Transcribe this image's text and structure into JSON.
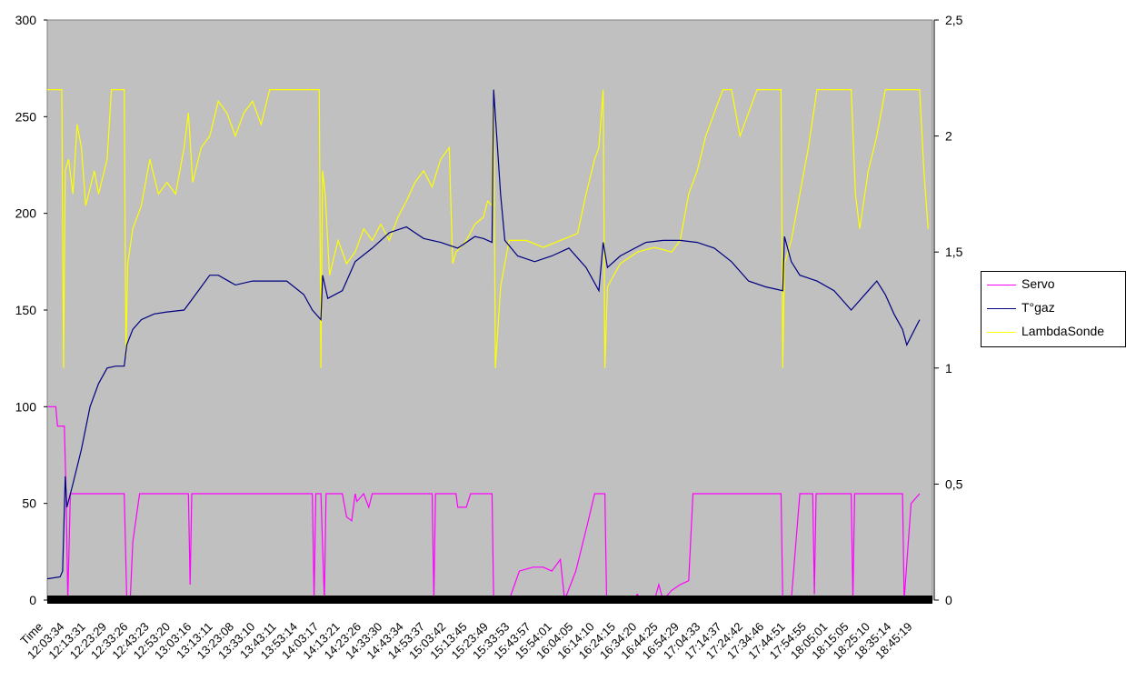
{
  "chart_data": {
    "type": "line",
    "x_axis_label": "Time",
    "x_tick_labels": [
      "12:03:34",
      "12:13:31",
      "12:23:29",
      "12:33:26",
      "12:43:23",
      "12:53:20",
      "13:03:16",
      "13:13:11",
      "13:23:08",
      "13:33:10",
      "13:43:11",
      "13:53:14",
      "14:03:17",
      "14:13:21",
      "14:23:26",
      "14:33:30",
      "14:43:34",
      "14:53:37",
      "15:03:42",
      "15:13:45",
      "15:23:49",
      "15:33:53",
      "15:43:57",
      "15:54:01",
      "16:04:05",
      "16:14:10",
      "16:24:15",
      "16:34:20",
      "16:44:25",
      "16:54:29",
      "17:04:33",
      "17:14:37",
      "17:24:42",
      "17:34:46",
      "17:44:51",
      "17:54:55",
      "18:05:01",
      "18:15:05",
      "18:25:10",
      "18:35:14",
      "18:45:19"
    ],
    "y_left": {
      "min": 0,
      "max": 300,
      "ticks": [
        "0",
        "50",
        "100",
        "150",
        "200",
        "250",
        "300"
      ]
    },
    "y_right": {
      "min": 0,
      "max": 2.5,
      "ticks": [
        "0",
        "0,5",
        "1",
        "1,5",
        "2",
        "2,5"
      ]
    },
    "background": "#C0C0C0",
    "legend_position": "right",
    "series": [
      {
        "name": "Servo",
        "color": "#FF00FF",
        "axis": "left",
        "points": [
          [
            0,
            100
          ],
          [
            0.01,
            100
          ],
          [
            0.012,
            90
          ],
          [
            0.02,
            90
          ],
          [
            0.022,
            56
          ],
          [
            0.024,
            0
          ],
          [
            0.027,
            55
          ],
          [
            0.09,
            55
          ],
          [
            0.093,
            0
          ],
          [
            0.097,
            0
          ],
          [
            0.1,
            30
          ],
          [
            0.108,
            55
          ],
          [
            0.165,
            55
          ],
          [
            0.167,
            8
          ],
          [
            0.169,
            55
          ],
          [
            0.31,
            55
          ],
          [
            0.312,
            0
          ],
          [
            0.314,
            55
          ],
          [
            0.32,
            55
          ],
          [
            0.324,
            0
          ],
          [
            0.326,
            55
          ],
          [
            0.345,
            55
          ],
          [
            0.35,
            43
          ],
          [
            0.356,
            41
          ],
          [
            0.36,
            55
          ],
          [
            0.362,
            51
          ],
          [
            0.37,
            55
          ],
          [
            0.376,
            48
          ],
          [
            0.38,
            55
          ],
          [
            0.45,
            55
          ],
          [
            0.452,
            0
          ],
          [
            0.454,
            55
          ],
          [
            0.478,
            55
          ],
          [
            0.48,
            48
          ],
          [
            0.49,
            48
          ],
          [
            0.495,
            55
          ],
          [
            0.52,
            55
          ],
          [
            0.522,
            0
          ],
          [
            0.54,
            0
          ],
          [
            0.552,
            15
          ],
          [
            0.568,
            17
          ],
          [
            0.58,
            17
          ],
          [
            0.59,
            15
          ],
          [
            0.6,
            21
          ],
          [
            0.605,
            0
          ],
          [
            0.618,
            15
          ],
          [
            0.632,
            40
          ],
          [
            0.64,
            55
          ],
          [
            0.652,
            55
          ],
          [
            0.654,
            0
          ],
          [
            0.685,
            0
          ],
          [
            0.69,
            3
          ],
          [
            0.695,
            0
          ],
          [
            0.71,
            0
          ],
          [
            0.715,
            8
          ],
          [
            0.72,
            0
          ],
          [
            0.73,
            5
          ],
          [
            0.74,
            8
          ],
          [
            0.75,
            10
          ],
          [
            0.755,
            55
          ],
          [
            0.858,
            55
          ],
          [
            0.86,
            0
          ],
          [
            0.87,
            0
          ],
          [
            0.88,
            55
          ],
          [
            0.895,
            55
          ],
          [
            0.897,
            3
          ],
          [
            0.899,
            55
          ],
          [
            0.94,
            55
          ],
          [
            0.942,
            0
          ],
          [
            0.944,
            55
          ],
          [
            1.0,
            55
          ],
          [
            1.002,
            0
          ],
          [
            1.01,
            50
          ],
          [
            1.02,
            55
          ]
        ]
      },
      {
        "name": "T°gaz",
        "color": "#000080",
        "axis": "left",
        "points": [
          [
            0,
            11
          ],
          [
            0.015,
            12
          ],
          [
            0.018,
            15
          ],
          [
            0.021,
            64
          ],
          [
            0.023,
            48
          ],
          [
            0.03,
            60
          ],
          [
            0.04,
            78
          ],
          [
            0.05,
            100
          ],
          [
            0.06,
            112
          ],
          [
            0.07,
            120
          ],
          [
            0.08,
            121
          ],
          [
            0.09,
            121
          ],
          [
            0.093,
            132
          ],
          [
            0.1,
            140
          ],
          [
            0.11,
            145
          ],
          [
            0.125,
            148
          ],
          [
            0.14,
            149
          ],
          [
            0.16,
            150
          ],
          [
            0.18,
            162
          ],
          [
            0.19,
            168
          ],
          [
            0.2,
            168
          ],
          [
            0.22,
            163
          ],
          [
            0.24,
            165
          ],
          [
            0.26,
            165
          ],
          [
            0.28,
            165
          ],
          [
            0.3,
            158
          ],
          [
            0.31,
            150
          ],
          [
            0.32,
            145
          ],
          [
            0.322,
            168
          ],
          [
            0.328,
            156
          ],
          [
            0.345,
            160
          ],
          [
            0.36,
            175
          ],
          [
            0.38,
            182
          ],
          [
            0.4,
            190
          ],
          [
            0.42,
            193
          ],
          [
            0.44,
            187
          ],
          [
            0.46,
            185
          ],
          [
            0.48,
            182
          ],
          [
            0.5,
            188
          ],
          [
            0.51,
            187
          ],
          [
            0.52,
            185
          ],
          [
            0.522,
            264
          ],
          [
            0.53,
            210
          ],
          [
            0.535,
            186
          ],
          [
            0.55,
            178
          ],
          [
            0.57,
            175
          ],
          [
            0.59,
            178
          ],
          [
            0.61,
            182
          ],
          [
            0.63,
            172
          ],
          [
            0.645,
            160
          ],
          [
            0.65,
            185
          ],
          [
            0.655,
            172
          ],
          [
            0.67,
            178
          ],
          [
            0.7,
            185
          ],
          [
            0.72,
            186
          ],
          [
            0.74,
            186
          ],
          [
            0.76,
            185
          ],
          [
            0.78,
            182
          ],
          [
            0.8,
            175
          ],
          [
            0.82,
            165
          ],
          [
            0.84,
            162
          ],
          [
            0.86,
            160
          ],
          [
            0.862,
            188
          ],
          [
            0.87,
            175
          ],
          [
            0.88,
            168
          ],
          [
            0.9,
            165
          ],
          [
            0.92,
            160
          ],
          [
            0.94,
            150
          ],
          [
            0.96,
            160
          ],
          [
            0.97,
            165
          ],
          [
            0.98,
            158
          ],
          [
            0.99,
            148
          ],
          [
            1.0,
            140
          ],
          [
            1.005,
            132
          ],
          [
            1.02,
            145
          ]
        ]
      },
      {
        "name": "LambdaSonde",
        "color": "#FFFF00",
        "axis": "right",
        "points": [
          [
            0,
            2.2
          ],
          [
            0.017,
            2.2
          ],
          [
            0.019,
            1.0
          ],
          [
            0.021,
            1.85
          ],
          [
            0.025,
            1.9
          ],
          [
            0.03,
            1.75
          ],
          [
            0.035,
            2.05
          ],
          [
            0.04,
            1.95
          ],
          [
            0.045,
            1.7
          ],
          [
            0.055,
            1.85
          ],
          [
            0.06,
            1.75
          ],
          [
            0.07,
            1.9
          ],
          [
            0.075,
            2.2
          ],
          [
            0.09,
            2.2
          ],
          [
            0.092,
            1.05
          ],
          [
            0.094,
            1.45
          ],
          [
            0.1,
            1.6
          ],
          [
            0.11,
            1.7
          ],
          [
            0.12,
            1.9
          ],
          [
            0.13,
            1.75
          ],
          [
            0.14,
            1.8
          ],
          [
            0.15,
            1.75
          ],
          [
            0.16,
            1.95
          ],
          [
            0.165,
            2.1
          ],
          [
            0.17,
            1.8
          ],
          [
            0.18,
            1.95
          ],
          [
            0.19,
            2.0
          ],
          [
            0.2,
            2.15
          ],
          [
            0.21,
            2.1
          ],
          [
            0.22,
            2.0
          ],
          [
            0.23,
            2.1
          ],
          [
            0.24,
            2.15
          ],
          [
            0.25,
            2.05
          ],
          [
            0.26,
            2.2
          ],
          [
            0.318,
            2.2
          ],
          [
            0.32,
            1.0
          ],
          [
            0.322,
            1.85
          ],
          [
            0.325,
            1.75
          ],
          [
            0.33,
            1.4
          ],
          [
            0.34,
            1.55
          ],
          [
            0.35,
            1.45
          ],
          [
            0.36,
            1.5
          ],
          [
            0.37,
            1.6
          ],
          [
            0.38,
            1.55
          ],
          [
            0.39,
            1.62
          ],
          [
            0.4,
            1.55
          ],
          [
            0.41,
            1.65
          ],
          [
            0.42,
            1.72
          ],
          [
            0.43,
            1.8
          ],
          [
            0.44,
            1.85
          ],
          [
            0.45,
            1.78
          ],
          [
            0.46,
            1.9
          ],
          [
            0.47,
            1.95
          ],
          [
            0.474,
            1.45
          ],
          [
            0.478,
            1.5
          ],
          [
            0.49,
            1.55
          ],
          [
            0.5,
            1.62
          ],
          [
            0.51,
            1.65
          ],
          [
            0.515,
            1.72
          ],
          [
            0.52,
            1.7
          ],
          [
            0.522,
            2.2
          ],
          [
            0.524,
            1.0
          ],
          [
            0.53,
            1.35
          ],
          [
            0.54,
            1.55
          ],
          [
            0.56,
            1.55
          ],
          [
            0.58,
            1.52
          ],
          [
            0.6,
            1.55
          ],
          [
            0.62,
            1.58
          ],
          [
            0.63,
            1.75
          ],
          [
            0.64,
            1.9
          ],
          [
            0.645,
            1.95
          ],
          [
            0.65,
            2.2
          ],
          [
            0.652,
            1.0
          ],
          [
            0.655,
            1.35
          ],
          [
            0.67,
            1.45
          ],
          [
            0.69,
            1.5
          ],
          [
            0.71,
            1.52
          ],
          [
            0.73,
            1.5
          ],
          [
            0.74,
            1.55
          ],
          [
            0.75,
            1.75
          ],
          [
            0.76,
            1.85
          ],
          [
            0.77,
            2.0
          ],
          [
            0.78,
            2.1
          ],
          [
            0.79,
            2.2
          ],
          [
            0.8,
            2.2
          ],
          [
            0.81,
            2.0
          ],
          [
            0.82,
            2.1
          ],
          [
            0.83,
            2.2
          ],
          [
            0.858,
            2.2
          ],
          [
            0.86,
            1.0
          ],
          [
            0.862,
            1.45
          ],
          [
            0.87,
            1.55
          ],
          [
            0.88,
            1.75
          ],
          [
            0.89,
            1.95
          ],
          [
            0.9,
            2.2
          ],
          [
            0.94,
            2.2
          ],
          [
            0.945,
            1.75
          ],
          [
            0.95,
            1.6
          ],
          [
            0.96,
            1.85
          ],
          [
            0.97,
            2.0
          ],
          [
            0.98,
            2.2
          ],
          [
            1.02,
            2.2
          ],
          [
            1.025,
            1.85
          ],
          [
            1.03,
            1.6
          ]
        ]
      }
    ]
  }
}
